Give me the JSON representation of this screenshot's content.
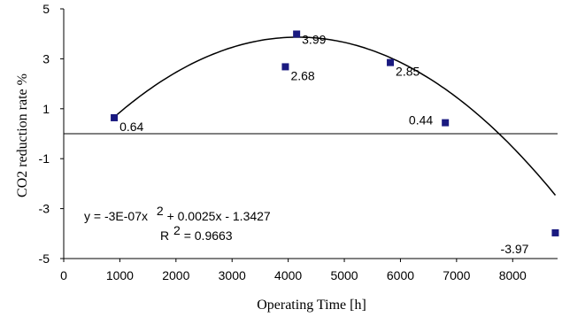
{
  "chart_data": {
    "type": "scatter",
    "xlabel": "Operating Time [h]",
    "ylabel": "CO2 reduction rate %",
    "xlim": [
      0,
      8800
    ],
    "ylim": [
      -5,
      5
    ],
    "x_ticks": [
      "0",
      "1000",
      "2000",
      "3000",
      "4000",
      "5000",
      "6000",
      "7000",
      "8000"
    ],
    "y_ticks": [
      "5",
      "3",
      "1",
      "-1",
      "-3",
      "-5"
    ],
    "points": [
      {
        "x": 900,
        "y": 0.64,
        "label": "0.64"
      },
      {
        "x": 3950,
        "y": 2.68,
        "label": "2.68"
      },
      {
        "x": 4150,
        "y": 3.99,
        "label": "3.99"
      },
      {
        "x": 5820,
        "y": 2.85,
        "label": "2.85"
      },
      {
        "x": 6800,
        "y": 0.44,
        "label": "0.44"
      },
      {
        "x": 8760,
        "y": -3.97,
        "label": "-3.97"
      }
    ],
    "trendline": {
      "type": "polynomial",
      "coefficients": {
        "a": -3e-07,
        "b": 0.0025,
        "c": -1.3427
      },
      "x_range": [
        900,
        8760
      ]
    },
    "equation": {
      "line1_a": "y = -3E-07x",
      "line1_sup": "2",
      "line1_b": "+ 0.0025x - 1.3427",
      "line2_a": "R",
      "line2_sup": "2",
      "line2_b": "= 0.9663"
    },
    "marker_color": "#1a1a80",
    "grid": false,
    "legend": "none"
  }
}
